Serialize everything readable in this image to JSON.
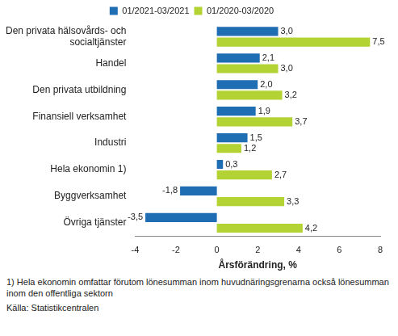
{
  "chart_data": {
    "type": "bar",
    "orientation": "horizontal",
    "categories": [
      "Den privata hälsovårds- och socialtjänster",
      "Handel",
      "Den privata utbildning",
      "Finansiell verksamhet",
      "Industri",
      "Hela ekonomin 1)",
      "Byggverksamhet",
      "Övriga tjänster"
    ],
    "series": [
      {
        "name": "01/2021-03/2021",
        "color": "#1f6db3",
        "values": [
          3.0,
          2.1,
          2.0,
          1.9,
          1.5,
          0.3,
          -1.8,
          -3.5
        ],
        "value_labels": [
          "3,0",
          "2,1",
          "2,0",
          "1,9",
          "1,5",
          "0,3",
          "-1,8",
          "-3,5"
        ]
      },
      {
        "name": "01/2020-03/2020",
        "color": "#b3d335",
        "values": [
          7.5,
          3.0,
          3.2,
          3.7,
          1.2,
          2.7,
          3.3,
          4.2
        ],
        "value_labels": [
          "7,5",
          "3,0",
          "3,2",
          "3,7",
          "1,2",
          "2,7",
          "3,3",
          "4,2"
        ]
      }
    ],
    "x_label": "Årsförändring, %",
    "xlim": [
      -4,
      8
    ],
    "xticks": [
      -4,
      -2,
      0,
      2,
      4,
      6,
      8
    ],
    "grid": false,
    "legend": "top",
    "data_labels": true,
    "footnote": "1) Hela ekonomin omfattar förutom lönesumman inom huvudnäringsgrenarna också lönesumman inom den offentliga sektorn",
    "source": "Källa: Statistikcentralen"
  }
}
